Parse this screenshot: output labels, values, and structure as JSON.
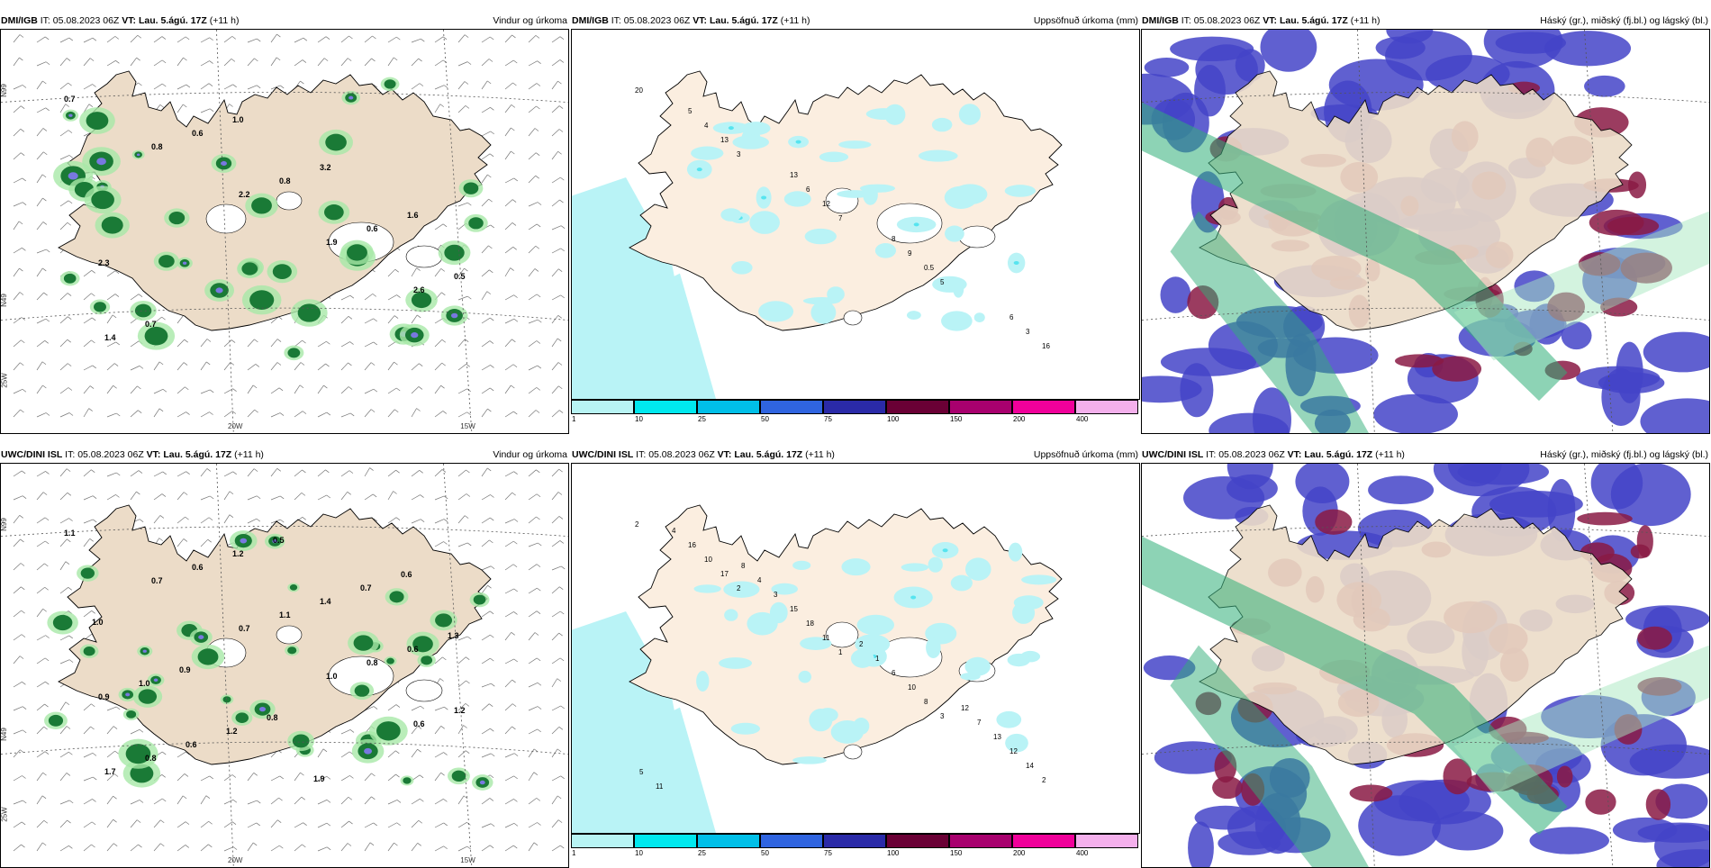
{
  "panels": [
    {
      "model": "DMI/IGB",
      "it_label": "IT:",
      "it": "05.08.2023 06Z",
      "vt_label": "VT:",
      "vt": "Lau. 5.ágú. 17Z",
      "lead": "(+11 h)",
      "title": "Vindur og úrkoma",
      "type": "wind"
    },
    {
      "model": "DMI/IGB",
      "it_label": "IT:",
      "it": "05.08.2023 06Z",
      "vt_label": "VT:",
      "vt": "Lau. 5.ágú. 17Z",
      "lead": "(+11 h)",
      "title": "Uppsöfnuð úrkoma (mm)",
      "type": "precip"
    },
    {
      "model": "DMI/IGB",
      "it_label": "IT:",
      "it": "05.08.2023 06Z",
      "vt_label": "VT:",
      "vt": "Lau. 5.ágú. 17Z",
      "lead": "(+11 h)",
      "title": "Háský (gr.), miðský (fj.bl.) og lágský (bl.)",
      "type": "cloud"
    },
    {
      "model": "UWC/DINI ISL",
      "it_label": "IT:",
      "it": "05.08.2023 06Z",
      "vt_label": "VT:",
      "vt": "Lau. 5.ágú. 17Z",
      "lead": "(+11 h)",
      "title": "Vindur og úrkoma",
      "type": "wind"
    },
    {
      "model": "UWC/DINI ISL",
      "it_label": "IT:",
      "it": "05.08.2023 06Z",
      "vt_label": "VT:",
      "vt": "Lau. 5.ágú. 17Z",
      "lead": "(+11 h)",
      "title": "Uppsöfnuð úrkoma (mm)",
      "type": "precip"
    },
    {
      "model": "UWC/DINI ISL",
      "it_label": "IT:",
      "it": "05.08.2023 06Z",
      "vt_label": "VT:",
      "vt": "Lau. 5.ágú. 17Z",
      "lead": "(+11 h)",
      "title": "Háský (gr.), miðský (fj.bl.) og lágský (bl.)",
      "type": "cloud"
    }
  ],
  "axis_labels": {
    "lat_n": "N99",
    "lat_s": "N49",
    "lon_w25": "25W",
    "lon_w20": "20W",
    "lon_w15": "15W"
  },
  "legend": {
    "ticks": [
      "1",
      "10",
      "25",
      "50",
      "75",
      "100",
      "150",
      "200",
      "400"
    ],
    "colors": [
      "#b8f4f4",
      "#00e8ee",
      "#00bfe8",
      "#2f64e0",
      "#2a2aa8",
      "#6a0035",
      "#a8006e",
      "#f0009a",
      "#f4b0ec"
    ]
  },
  "colors": {
    "land": "#ecdcc8",
    "land_light": "#fbeee0",
    "precip_light": "#b9f3f6",
    "precip_mid": "#56e4ef",
    "cloud_blue": "#4444c8",
    "cloud_maroon": "#8a1a44",
    "cloud_green": "#2fae78",
    "wind_green": "#1a7a36"
  },
  "wind_values": {
    "top": [
      "0.7",
      "0.8",
      "2.2",
      "1.9",
      "2.6",
      "1.4",
      "0.6",
      "0.8",
      "0.6",
      "0.5",
      "0.7",
      "1.0",
      "3.2",
      "1.6",
      "2.3"
    ],
    "bottom": [
      "1.1",
      "0.7",
      "0.7",
      "1.0",
      "0.6",
      "1.7",
      "0.6",
      "1.1",
      "0.8",
      "1.2",
      "0.8",
      "1.2",
      "1.4",
      "0.6",
      "0.9",
      "0.6",
      "0.5",
      "0.7",
      "1.3",
      "1.0",
      "1.2",
      "1.9",
      "0.6",
      "1.0",
      "0.9",
      "0.8"
    ]
  },
  "precip_values": {
    "top": [
      "20",
      "3",
      "7",
      "5",
      "16",
      "13",
      "12",
      "0.5",
      "3",
      "4",
      "6",
      "9",
      "6",
      "5",
      "13",
      "8"
    ],
    "bottom": [
      "2",
      "2",
      "1",
      "3",
      "2",
      "17",
      "11",
      "8",
      "14",
      "10",
      "18",
      "10",
      "12",
      "16",
      "15",
      "6",
      "13",
      "4",
      "3",
      "1",
      "7",
      "11",
      "4",
      "2",
      "12",
      "5",
      "8"
    ]
  }
}
